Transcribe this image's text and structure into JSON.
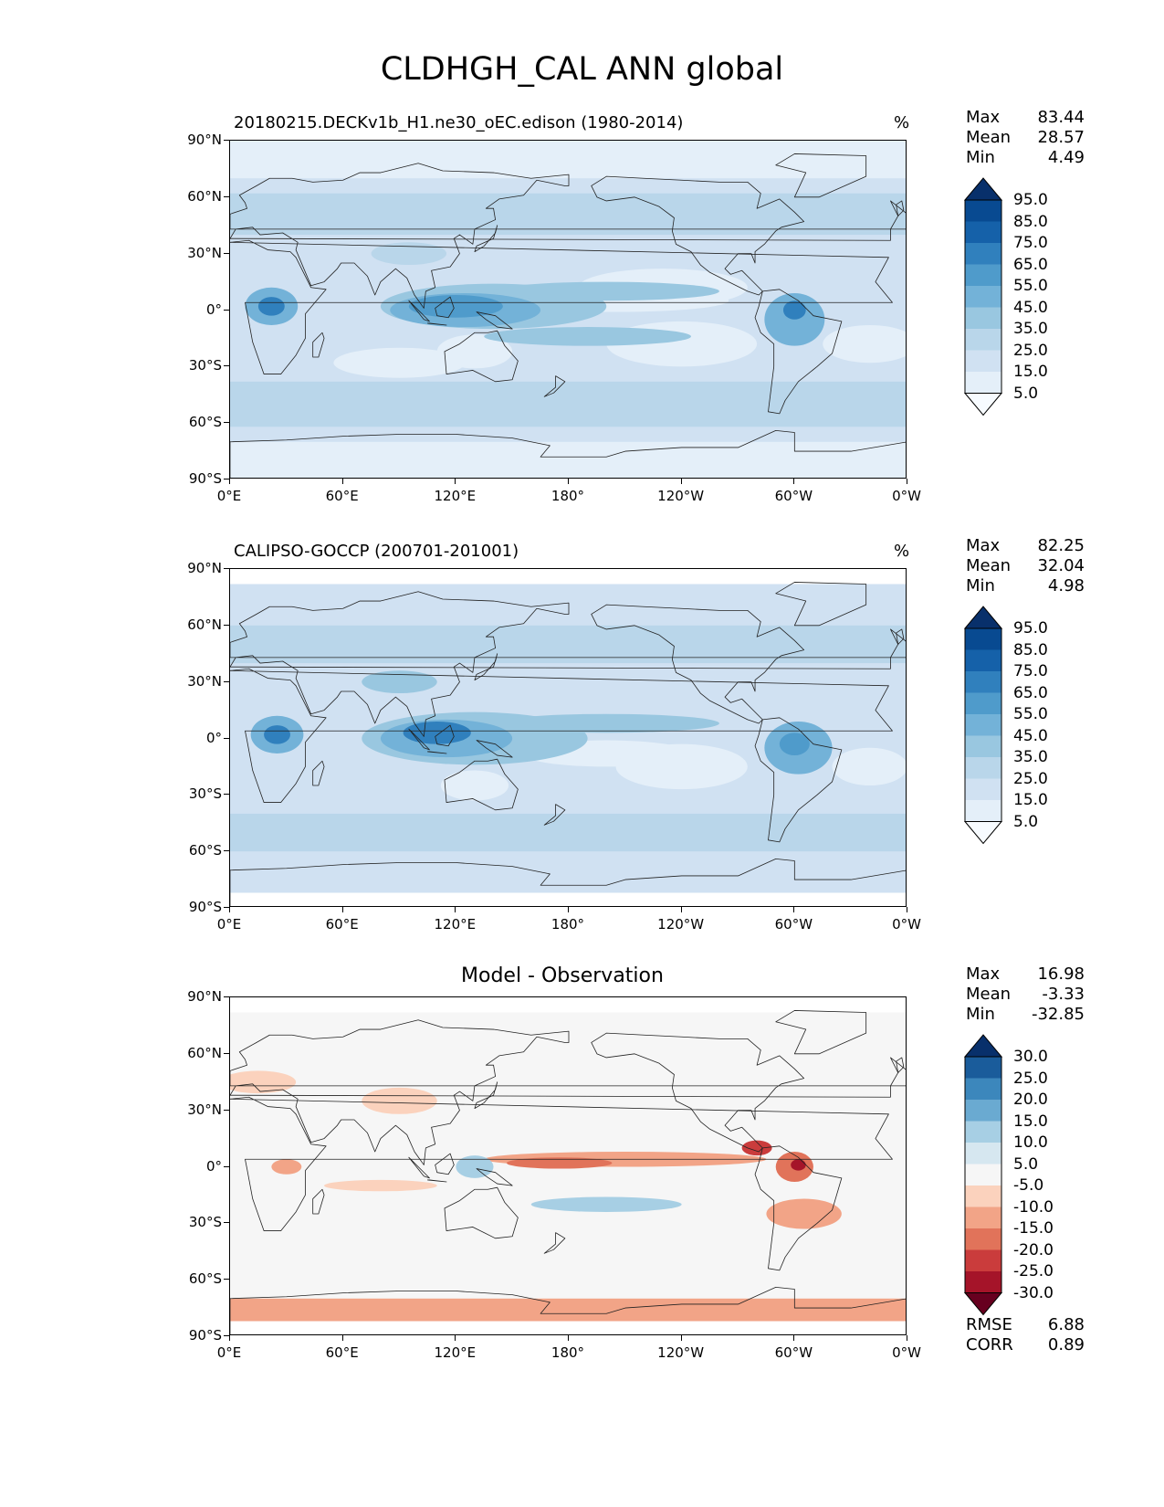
{
  "figure_title": "CLDHGH_CAL ANN global",
  "axes": {
    "lat_labels": [
      "90°N",
      "60°N",
      "30°N",
      "0°",
      "30°S",
      "60°S",
      "90°S"
    ],
    "lon_labels": [
      "0°E",
      "60°E",
      "120°E",
      "180°",
      "120°W",
      "60°W",
      "0°W"
    ]
  },
  "panels": [
    {
      "title": "20180215.DECKv1b_H1.ne30_oEC.edison (1980-2014)",
      "unit": "%",
      "stats": {
        "max_label": "Max",
        "max": "83.44",
        "mean_label": "Mean",
        "mean": "28.57",
        "min_label": "Min",
        "min": "4.49"
      },
      "colorbar": {
        "labels": [
          "95.0",
          "85.0",
          "75.0",
          "65.0",
          "55.0",
          "45.0",
          "35.0",
          "25.0",
          "15.0",
          "5.0"
        ]
      }
    },
    {
      "title": "CALIPSO-GOCCP (200701-201001)",
      "unit": "%",
      "stats": {
        "max_label": "Max",
        "max": "82.25",
        "mean_label": "Mean",
        "mean": "32.04",
        "min_label": "Min",
        "min": "4.98"
      },
      "colorbar": {
        "labels": [
          "95.0",
          "85.0",
          "75.0",
          "65.0",
          "55.0",
          "45.0",
          "35.0",
          "25.0",
          "15.0",
          "5.0"
        ]
      }
    },
    {
      "title": "Model - Observation",
      "unit": "",
      "stats": {
        "max_label": "Max",
        "max": "16.98",
        "mean_label": "Mean",
        "mean": "-3.33",
        "min_label": "Min",
        "min": "-32.85"
      },
      "colorbar": {
        "labels": [
          "30.0",
          "25.0",
          "20.0",
          "15.0",
          "10.0",
          "5.0",
          "-5.0",
          "-10.0",
          "-15.0",
          "-20.0",
          "-25.0",
          "-30.0"
        ]
      },
      "rmse_label": "RMSE",
      "rmse": "6.88",
      "corr_label": "CORR",
      "corr": "0.89"
    }
  ],
  "colors": {
    "blues": [
      "#f7fbff",
      "#e4eff9",
      "#d0e1f2",
      "#b9d6ea",
      "#99c7e0",
      "#73b2d8",
      "#4f9bcb",
      "#3080bd",
      "#1561a9",
      "#084a91",
      "#08306b"
    ],
    "diverging": [
      "#67001f",
      "#a51429",
      "#ca3c3c",
      "#e1735a",
      "#f2a487",
      "#fbd2bd",
      "#f6f6f6",
      "#d6e7f0",
      "#a7cfe4",
      "#6aaad1",
      "#3c87bc",
      "#1a5c9b",
      "#08306b"
    ]
  }
}
